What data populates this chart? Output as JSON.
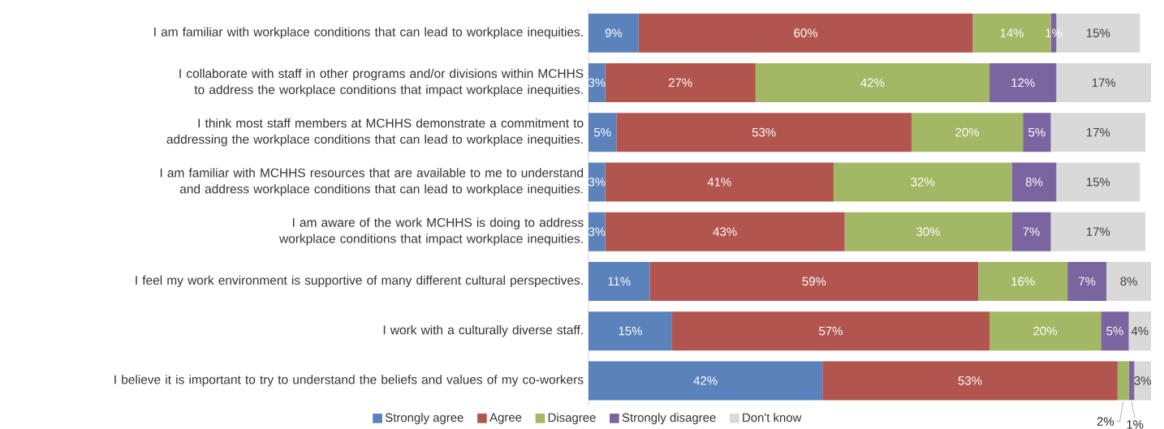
{
  "chart_data": {
    "type": "bar",
    "orientation": "horizontal",
    "stacked": true,
    "legend": "bottom",
    "categories": [
      "I am familiar with workplace conditions that can lead to workplace inequities.",
      "I collaborate with staff in other programs and/or divisions within MCHHS to address the workplace conditions that impact workplace inequities.",
      "I think most staff members at MCHHS demonstrate a commitment to addressing the workplace conditions that can lead to workplace inequities.",
      "I am familiar with MCHHS resources that are available to me to understand and address workplace conditions that can lead to workplace inequities.",
      "I am aware of the work MCHHS is doing to address workplace conditions that impact workplace inequities.",
      "I feel my work environment is supportive of many different cultural perspectives.",
      "I work with a culturally  diverse staff.",
      "I believe it is important to try to understand the beliefs and values of my co-workers"
    ],
    "series": [
      {
        "name": "Strongly agree",
        "color": "#5b82bb",
        "values": [
          9,
          3,
          5,
          3,
          3,
          11,
          15,
          42
        ],
        "value_labels": [
          "9%",
          "3%",
          "5%",
          "3%",
          "3%",
          "11%",
          "15%",
          "42%"
        ]
      },
      {
        "name": "Agree",
        "color": "#b2554f",
        "values": [
          60,
          27,
          53,
          41,
          43,
          59,
          57,
          53
        ],
        "value_labels": [
          "60%",
          "27%",
          "53%",
          "41%",
          "43%",
          "59%",
          "57%",
          "53%"
        ]
      },
      {
        "name": "Disagree",
        "color": "#a3b865",
        "values": [
          14,
          42,
          20,
          32,
          30,
          16,
          20,
          2
        ],
        "value_labels": [
          "14%",
          "42%",
          "20%",
          "32%",
          "30%",
          "16%",
          "20%",
          "2%"
        ]
      },
      {
        "name": "Strongly disagree",
        "color": "#7b65a0",
        "values": [
          1,
          12,
          5,
          8,
          7,
          7,
          5,
          1
        ],
        "value_labels": [
          "1%",
          "12%",
          "5%",
          "8%",
          "7%",
          "7%",
          "5%",
          "1%"
        ]
      },
      {
        "name": "Don't know",
        "color": "#d9d9d9",
        "values": [
          15,
          17,
          17,
          15,
          17,
          8,
          4,
          3
        ],
        "value_labels": [
          "15%",
          "17%",
          "17%",
          "15%",
          "17%",
          "8%",
          "4%",
          "3%"
        ]
      }
    ]
  }
}
